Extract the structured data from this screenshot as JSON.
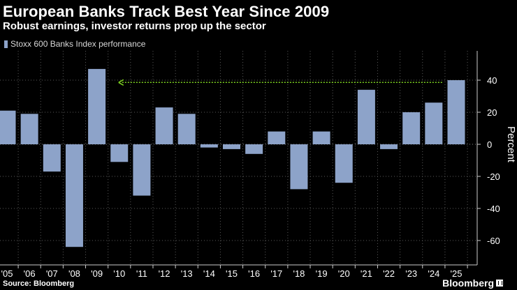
{
  "header": {
    "title": "European Banks Track Best Year Since 2009",
    "subtitle": "Robust earnings, investor returns prop up the sector"
  },
  "legend": {
    "label": "Stoxx 600 Banks Index performance"
  },
  "footer": {
    "source": "Source: Bloomberg",
    "brand": "Bloomberg"
  },
  "colors": {
    "bar": "#8da3c9",
    "background": "#000000",
    "grid": "#5a5a5a",
    "arrow": "#7ed321",
    "axis_text": "#ffffff"
  },
  "chart_data": {
    "type": "bar",
    "title": "European Banks Track Best Year Since 2009",
    "subtitle": "Robust earnings, investor returns prop up the sector",
    "xlabel": "",
    "ylabel": "Percent",
    "ylim": [
      -75,
      58
    ],
    "yticks": [
      40,
      20,
      0,
      -20,
      -40,
      -60
    ],
    "ytick_labels": [
      "40",
      "20",
      "0",
      "-20",
      "-40",
      "-60"
    ],
    "grid": true,
    "legend_position": "top-left",
    "categories": [
      "'05",
      "'06",
      "'07",
      "'08",
      "'09",
      "'10",
      "'11",
      "'12",
      "'13",
      "'14",
      "'15",
      "'16",
      "'17",
      "'18",
      "'19",
      "'20",
      "'21",
      "'22",
      "'23",
      "'24",
      "'25"
    ],
    "series": [
      {
        "name": "Stoxx 600 Banks Index performance",
        "values": [
          21,
          19,
          -17,
          -64,
          47,
          -11,
          -32,
          23,
          19,
          -2,
          -3,
          -6,
          8,
          -28,
          8,
          -24,
          34,
          -3,
          20,
          26,
          40
        ]
      }
    ],
    "annotations": [
      {
        "type": "arrow",
        "from_category": "'24",
        "to_category": "'10",
        "y": 39,
        "style": "dotted",
        "color": "green"
      }
    ]
  }
}
